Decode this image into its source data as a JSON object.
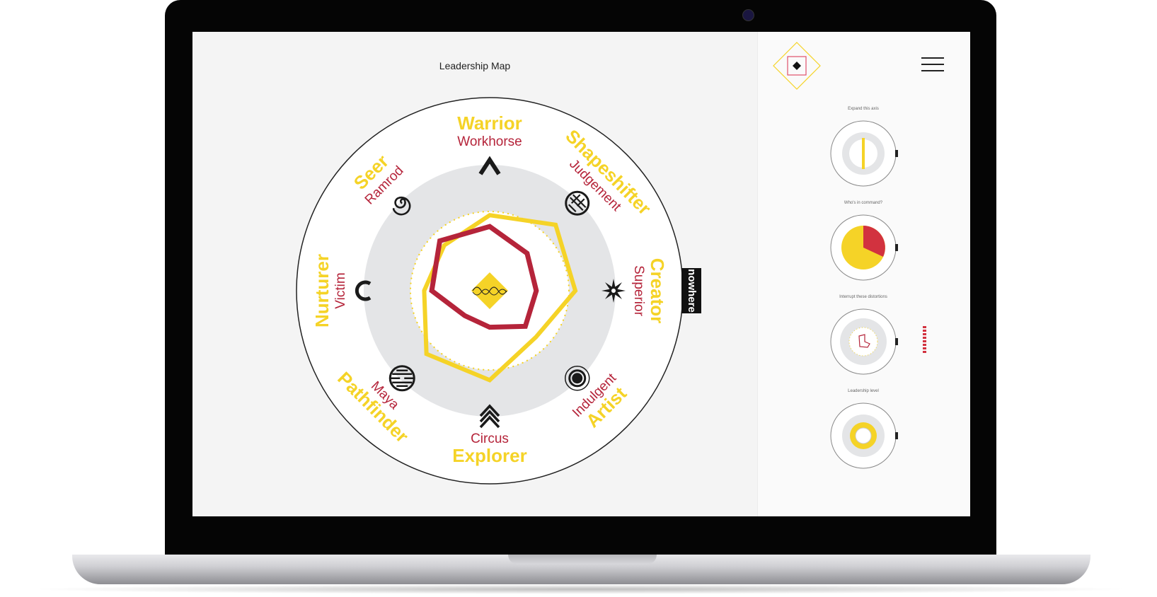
{
  "header": {
    "title": "Leadership Map",
    "menu_icon": "hamburger-icon",
    "logo_icon": "diamond-logo-icon"
  },
  "brand_tab": "nowhere",
  "colors": {
    "yellow": "#f5d327",
    "red": "#b5243a",
    "ring": "#e4e5e7",
    "outline": "#222222"
  },
  "chart_data": {
    "type": "radar",
    "axes": [
      {
        "primary": "Warrior",
        "secondary": "Workhorse",
        "icon": "chevron-up-icon"
      },
      {
        "primary": "Shapeshifter",
        "secondary": "Judgement",
        "icon": "maze-circle-icon"
      },
      {
        "primary": "Creator",
        "secondary": "Superior",
        "icon": "starburst-icon"
      },
      {
        "primary": "Artist",
        "secondary": "Indulgent",
        "icon": "concentric-circles-icon"
      },
      {
        "primary": "Explorer",
        "secondary": "Circus",
        "icon": "double-chevron-up-icon"
      },
      {
        "primary": "Pathfinder",
        "secondary": "Maya",
        "icon": "striped-circle-icon"
      },
      {
        "primary": "Nurturer",
        "secondary": "Victim",
        "icon": "crescent-icon"
      },
      {
        "primary": "Seer",
        "secondary": "Ramrod",
        "icon": "spiral-icon"
      }
    ],
    "series": [
      {
        "color": "#f5d327",
        "values": [
          0.6,
          0.74,
          0.68,
          0.52,
          0.71,
          0.71,
          0.52,
          0.51
        ]
      },
      {
        "color": "#b5243a",
        "values": [
          0.51,
          0.42,
          0.37,
          0.4,
          0.29,
          0.28,
          0.46,
          0.56
        ]
      }
    ],
    "range": [
      0,
      1
    ]
  },
  "sidebar": {
    "cards": [
      {
        "title": "Expand this axis"
      },
      {
        "title": "Who's in command?"
      },
      {
        "title": "Interrupt these distortions"
      },
      {
        "title": "Leadership level"
      }
    ]
  }
}
